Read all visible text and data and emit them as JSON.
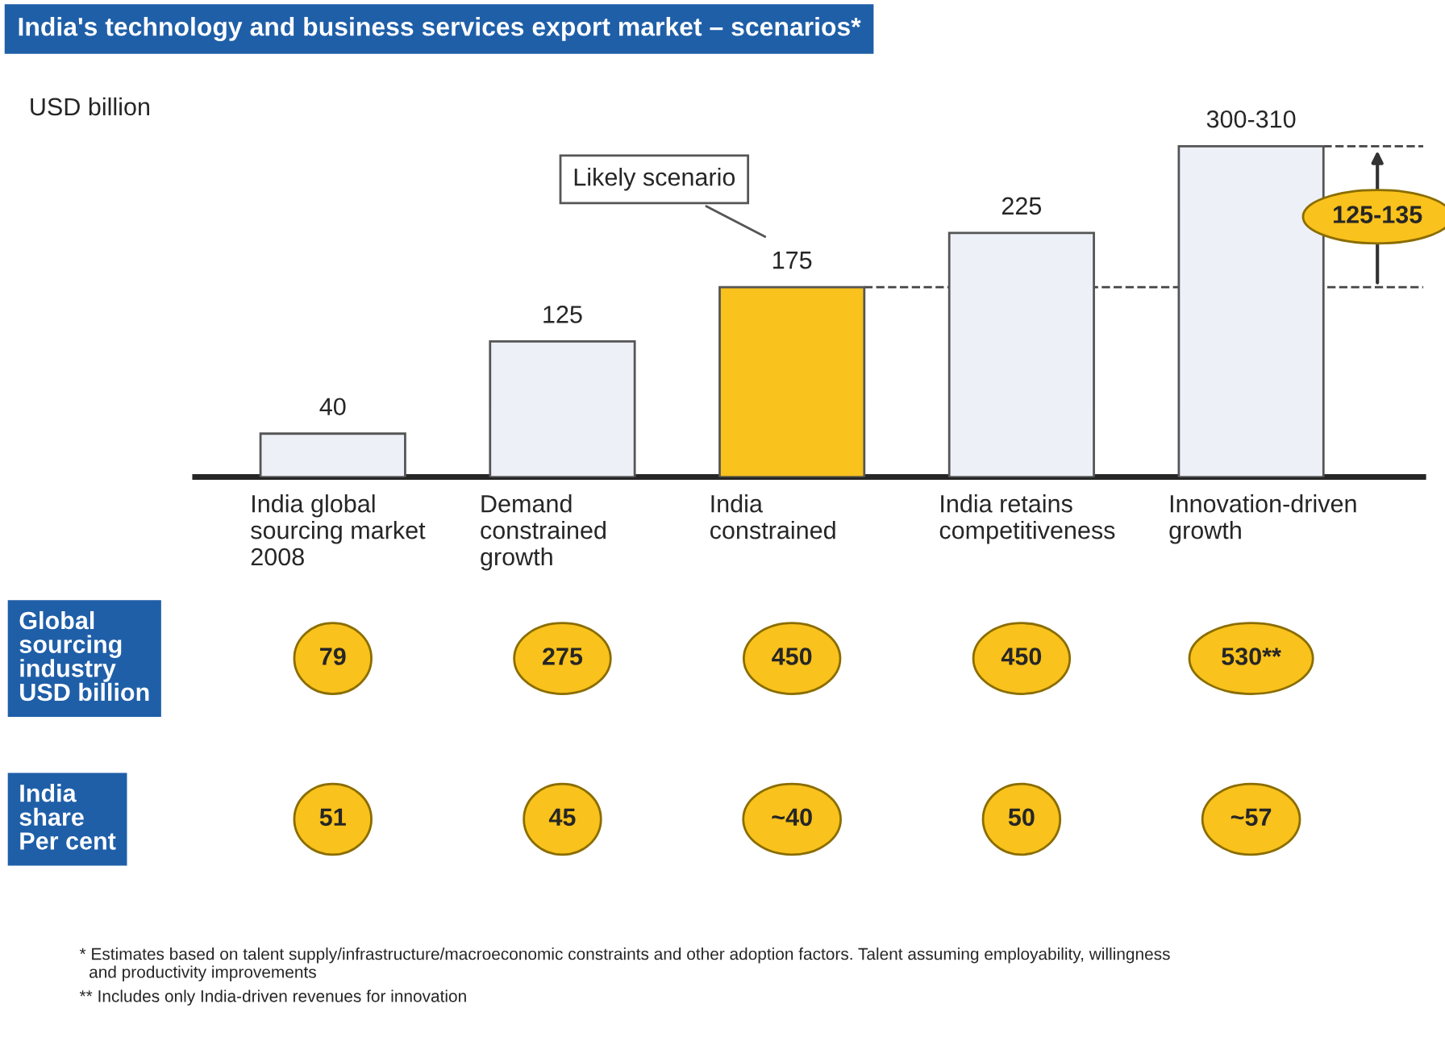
{
  "chart_data": {
    "type": "bar",
    "title": "India's technology and business services export market – scenarios*",
    "ylabel": "USD billion",
    "categories": [
      "India global\nsourcing market\n2008",
      "Demand\nconstrained\ngrowth",
      "India\nconstrained",
      "India retains\ncompetitiveness",
      "Innovation-driven\ngrowth"
    ],
    "values": [
      40,
      125,
      175,
      225,
      305
    ],
    "value_labels": [
      "40",
      "125",
      "175",
      "225",
      "300-310"
    ],
    "colors": [
      "#eef0f8",
      "#eef0f8",
      "#f9c21c",
      "#eef0f8",
      "#eef0f8"
    ],
    "tick_labels": "x",
    "grid": false,
    "legend": false,
    "ref_lines": [
      {
        "axis": "y",
        "value": 175,
        "line_style": "dashed"
      },
      {
        "axis": "y",
        "value": 305,
        "line_style": "dashed"
      }
    ],
    "annotations": [
      "Likely scenario",
      "125-135",
      "Global\nsourcing\nindustry\nUSD billion",
      "79",
      "275",
      "450",
      "450",
      "530**",
      "India\nshare\nPer cent",
      "51",
      "45",
      "~40",
      "50",
      "~57",
      "* Estimates based on talent supply/infrastructure/macroeconomic constraints and other adoption factors. Talent assuming employability, willingness\n  and productivity improvements",
      "** Includes only India-driven revenues for innovation"
    ]
  }
}
